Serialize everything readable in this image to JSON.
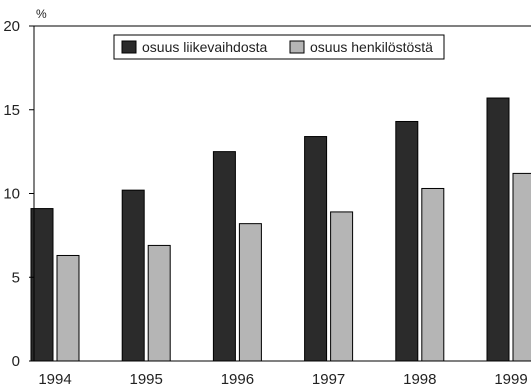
{
  "chart_data": {
    "type": "bar",
    "title": "",
    "xlabel": "",
    "ylabel": "",
    "unit": "%",
    "categories": [
      "1994",
      "1995",
      "1996",
      "1997",
      "1998",
      "1999"
    ],
    "series": [
      {
        "name": "osuus liikevaihdosta",
        "color": "#2b2b2b",
        "values": [
          9.1,
          10.2,
          12.5,
          13.4,
          14.3,
          15.7
        ]
      },
      {
        "name": "osuus henkilöstöstä",
        "color": "#b5b5b5",
        "values": [
          6.3,
          6.9,
          8.2,
          8.9,
          10.3,
          11.2
        ]
      }
    ],
    "ylim": [
      0,
      20
    ],
    "yticks": [
      0,
      5,
      10,
      15,
      20
    ],
    "grid": false,
    "legend_position": "top"
  }
}
